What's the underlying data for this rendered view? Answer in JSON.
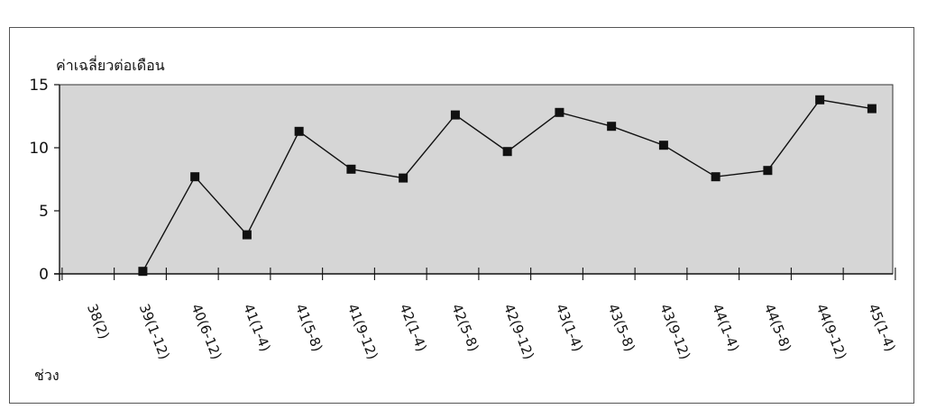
{
  "chart_data": {
    "type": "line",
    "title": "",
    "ylabel": "ค่าเฉลี่ยวต่อเดือน",
    "xlabel": "ช่วง",
    "ylim": [
      0,
      15
    ],
    "yticks": [
      0,
      5,
      10,
      15
    ],
    "grid": false,
    "legend": "none",
    "categories": [
      "38(2)",
      "39(1-12)",
      "40(6-12)",
      "41(1-4)",
      "41(5-8)",
      "41(9-12)",
      "42(1-4)",
      "42(5-8)",
      "42(9-12)",
      "43(1-4)",
      "43(5-8)",
      "43(9-12)",
      "44(1-4)",
      "44(5-8)",
      "44(9-12)",
      "45(1-4)"
    ],
    "series": [
      {
        "values": [
          null,
          0.2,
          7.7,
          3.1,
          11.3,
          8.3,
          7.6,
          12.6,
          9.7,
          12.8,
          11.7,
          10.2,
          7.7,
          8.2,
          13.8,
          13.1
        ]
      }
    ],
    "colors": {
      "plot_bg": "#d6d6d6",
      "line": "#111111",
      "marker": "#111111"
    }
  }
}
